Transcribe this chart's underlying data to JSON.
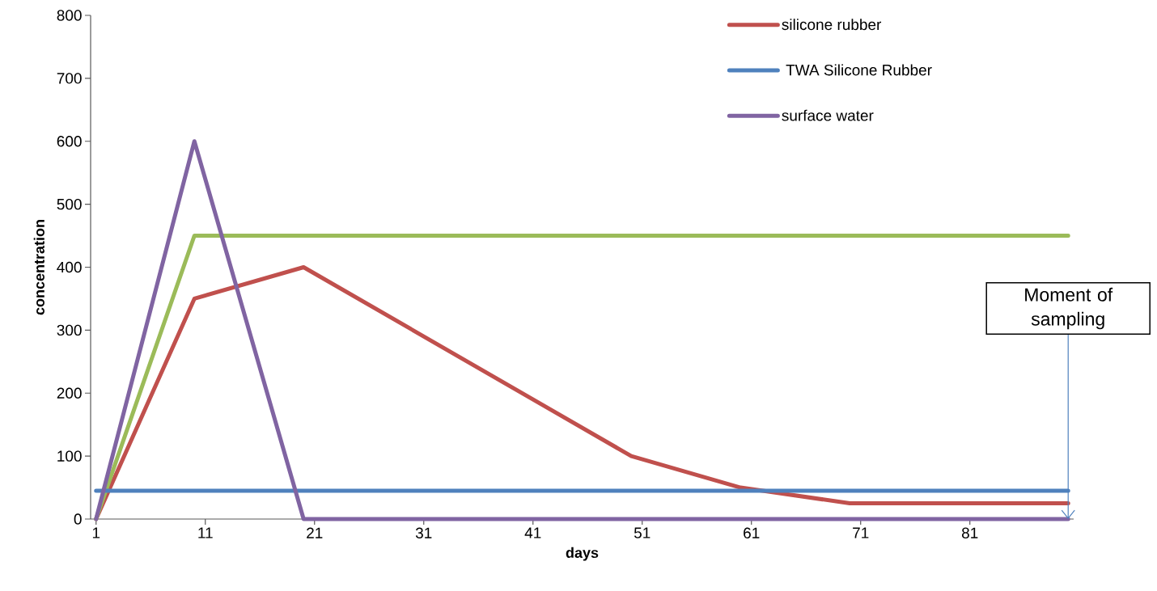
{
  "chart_data": {
    "type": "line",
    "xlabel": "days",
    "ylabel": "concentration",
    "xlim": [
      0.5,
      90.5
    ],
    "ylim": [
      0,
      800
    ],
    "xticks": [
      1,
      11,
      21,
      31,
      41,
      51,
      61,
      71,
      81
    ],
    "yticks": [
      0,
      100,
      200,
      300,
      400,
      500,
      600,
      700,
      800
    ],
    "grid": false,
    "legend": "top right",
    "marker": "none",
    "line_style": "solid",
    "series": [
      {
        "name": "silicone rubber",
        "color": "#c0504d",
        "x": [
          1,
          10,
          20,
          50,
          60,
          70,
          90
        ],
        "values": [
          0,
          350,
          400,
          100,
          50,
          25,
          25
        ]
      },
      {
        "color": "#9bbb59",
        "x": [
          1,
          10,
          90
        ],
        "values": [
          0,
          450,
          450
        ]
      },
      {
        "name": " TWA Silicone Rubber",
        "color": "#4f81bd",
        "x": [
          1,
          90
        ],
        "values": [
          45,
          45
        ]
      },
      {
        "name": "surface water",
        "color": "#8064a2",
        "x": [
          1,
          10,
          20,
          90
        ],
        "values": [
          0,
          600,
          0,
          0
        ]
      }
    ],
    "annotations": [
      {
        "text": "Moment of sampling",
        "x": 90,
        "y": 0
      }
    ]
  }
}
